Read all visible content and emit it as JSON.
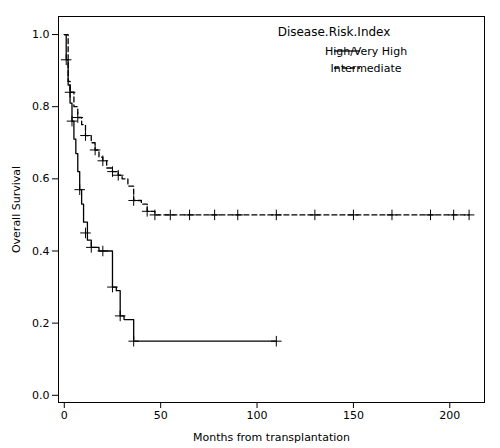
{
  "chart_data": {
    "type": "line",
    "title": "Disease.Risk.Index",
    "x_label": "Months from transplantation",
    "y_label": "Overall Survival",
    "xlim": [
      -3,
      218
    ],
    "ylim": [
      -0.02,
      1.05
    ],
    "xticks": [
      0,
      50,
      100,
      150,
      200
    ],
    "yticks": [
      {
        "value": 0.0,
        "label": "0.0"
      },
      0.2,
      0.4,
      0.6,
      0.8,
      {
        "value": 1.0,
        "label": "1.0"
      }
    ],
    "legend": "upper right",
    "grid": false,
    "series": [
      {
        "name": "High/Very High",
        "color": "#000000",
        "line_style": "solid",
        "marker": "plus",
        "x": [
          0,
          1,
          2,
          3,
          4,
          5,
          6,
          7,
          8,
          9,
          10,
          12,
          14,
          15,
          18,
          20,
          22,
          25,
          27,
          29,
          31,
          33,
          36,
          38,
          40,
          110
        ],
        "values": [
          1.0,
          0.93,
          0.86,
          0.81,
          0.76,
          0.71,
          0.67,
          0.62,
          0.57,
          0.53,
          0.48,
          0.43,
          0.41,
          0.41,
          0.4,
          0.4,
          0.4,
          0.3,
          0.29,
          0.22,
          0.21,
          0.21,
          0.15,
          0.15,
          0.15,
          0.15
        ],
        "censor_x": [
          1,
          4,
          8,
          11,
          14,
          20,
          25,
          29,
          36,
          110
        ],
        "censor_y": [
          0.93,
          0.76,
          0.57,
          0.45,
          0.41,
          0.4,
          0.3,
          0.22,
          0.15,
          0.15
        ]
      },
      {
        "name": "Intermediate",
        "color": "#000000",
        "line_style": "dashed",
        "marker": "plus",
        "x": [
          0,
          2,
          3,
          5,
          7,
          9,
          11,
          14,
          16,
          18,
          20,
          22,
          25,
          28,
          30,
          33,
          36,
          40,
          43,
          47,
          50,
          60,
          70,
          80,
          90,
          100,
          110,
          120,
          130,
          140,
          150,
          160,
          170,
          180,
          190,
          200,
          210
        ],
        "values": [
          1.0,
          0.87,
          0.84,
          0.8,
          0.77,
          0.75,
          0.72,
          0.7,
          0.68,
          0.66,
          0.65,
          0.63,
          0.62,
          0.61,
          0.6,
          0.58,
          0.54,
          0.53,
          0.51,
          0.5,
          0.5,
          0.5,
          0.5,
          0.5,
          0.5,
          0.5,
          0.5,
          0.5,
          0.5,
          0.5,
          0.5,
          0.5,
          0.5,
          0.5,
          0.5,
          0.5,
          0.5
        ],
        "censor_x": [
          3,
          7,
          11,
          16,
          20,
          25,
          28,
          36,
          43,
          47,
          55,
          65,
          78,
          90,
          110,
          130,
          150,
          170,
          190,
          202,
          210
        ],
        "censor_y": [
          0.84,
          0.77,
          0.72,
          0.68,
          0.65,
          0.62,
          0.61,
          0.54,
          0.51,
          0.5,
          0.5,
          0.5,
          0.5,
          0.5,
          0.5,
          0.5,
          0.5,
          0.5,
          0.5,
          0.5,
          0.5
        ]
      }
    ]
  }
}
